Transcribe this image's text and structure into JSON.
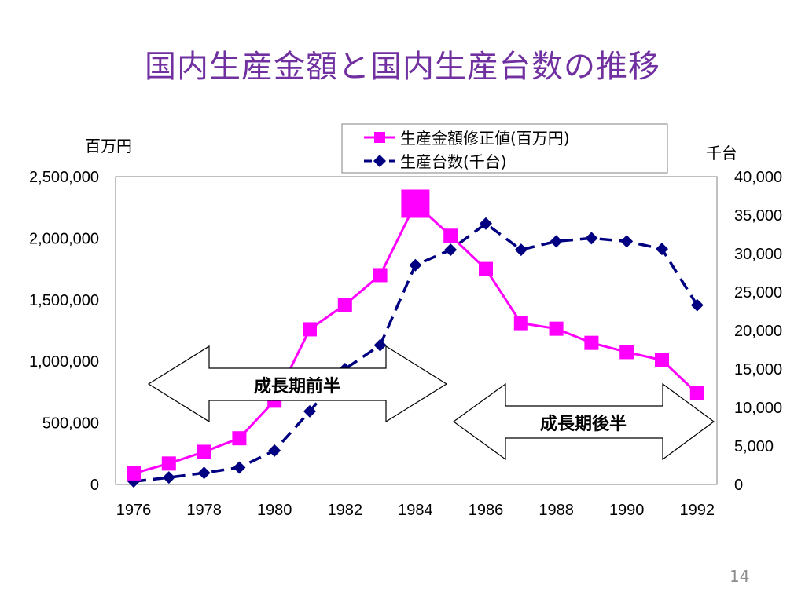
{
  "slide": {
    "title": "国内生産金額と国内生産台数の推移",
    "page_number": "14"
  },
  "colors": {
    "title": "#7030A0",
    "series_amount": "#FF00FF",
    "series_units": "#000080"
  },
  "chart_data": {
    "type": "line",
    "x": [
      1976,
      1977,
      1978,
      1979,
      1980,
      1981,
      1982,
      1983,
      1984,
      1985,
      1986,
      1987,
      1988,
      1989,
      1990,
      1991,
      1992
    ],
    "x_tick_labels": [
      "1976",
      "1978",
      "1980",
      "1982",
      "1984",
      "1986",
      "1988",
      "1990",
      "1992"
    ],
    "y_left": {
      "unit_label": "百万円",
      "min": 0,
      "max": 2500000,
      "tick_labels": [
        "0",
        "500,000",
        "1,000,000",
        "1,500,000",
        "2,000,000",
        "2,500,000"
      ]
    },
    "y_right": {
      "unit_label": "千台",
      "min": 0,
      "max": 40000,
      "tick_labels": [
        "0",
        "5,000",
        "10,000",
        "15,000",
        "20,000",
        "25,000",
        "30,000",
        "35,000",
        "40,000"
      ]
    },
    "series": [
      {
        "name": "生産金額修正値(百万円)",
        "axis": "left",
        "marker": "square",
        "line": "solid",
        "values": [
          90000,
          170000,
          265000,
          375000,
          680000,
          1260000,
          1460000,
          1700000,
          2280000,
          2020000,
          1750000,
          1310000,
          1265000,
          1150000,
          1075000,
          1010000,
          740000
        ]
      },
      {
        "name": "生産台数(千台)",
        "axis": "right",
        "marker": "diamond",
        "line": "dashed",
        "values": [
          400,
          900,
          1500,
          2200,
          4400,
          9500,
          15000,
          18100,
          28500,
          30500,
          33900,
          30500,
          31600,
          32000,
          31600,
          30600,
          23300
        ]
      }
    ],
    "emphasized_point": {
      "series": 0,
      "x": 1984
    },
    "annotations": [
      "成長期前半",
      "成長期後半"
    ],
    "legend_position": "top-right",
    "grid": false
  }
}
